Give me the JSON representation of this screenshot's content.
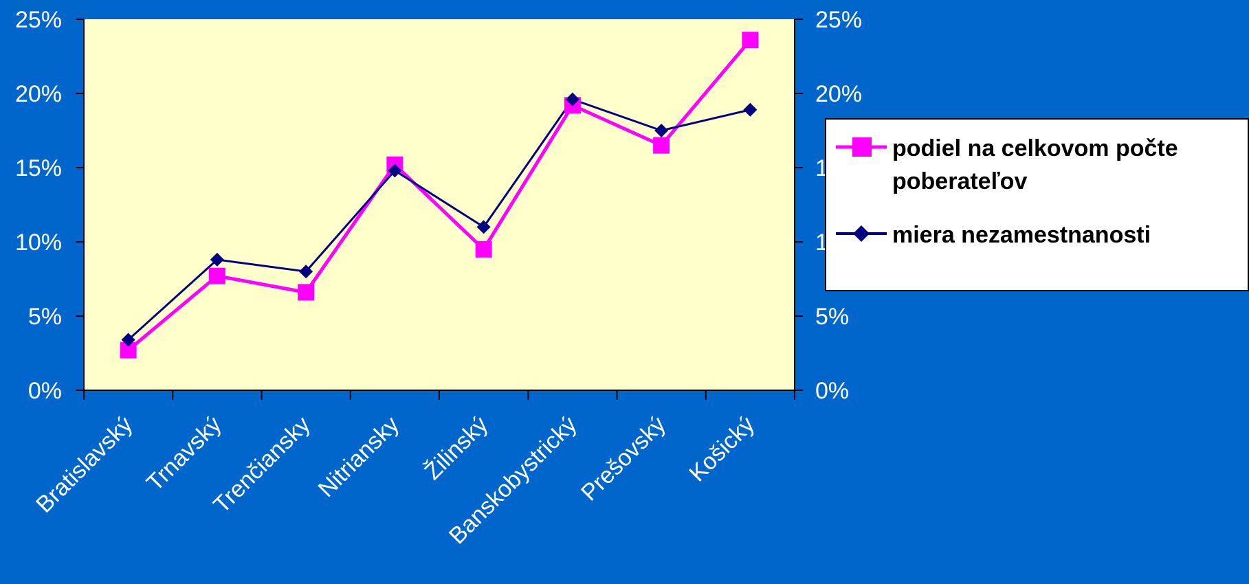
{
  "chart_data": {
    "type": "line",
    "categories": [
      "Bratislavský",
      "Trnavský",
      "Trenčiansky",
      "Nitriansky",
      "Žilinský",
      "Banskobystrický",
      "Prešovský",
      "Košický"
    ],
    "series": [
      {
        "name": "podiel na celkovom počte poberateľov",
        "values": [
          2.7,
          7.7,
          6.6,
          15.2,
          9.5,
          19.2,
          16.5,
          23.6
        ],
        "color": "#ff00ff",
        "marker": "square"
      },
      {
        "name": "miera nezamestnanosti",
        "values": [
          3.4,
          8.8,
          8.0,
          14.8,
          11.0,
          19.6,
          17.5,
          18.9
        ],
        "color": "#000080",
        "marker": "diamond"
      }
    ],
    "y_ticks": [
      "0%",
      "5%",
      "10%",
      "15%",
      "20%",
      "25%"
    ],
    "y2_ticks": [
      "0%",
      "5%",
      "10%",
      "15%",
      "20%",
      "25%"
    ],
    "ylim": [
      0,
      25
    ],
    "y2lim": [
      0,
      25
    ],
    "grid": false,
    "legend_position": "right",
    "plot_background": "#ffffcc",
    "page_background": "#0066cc"
  }
}
